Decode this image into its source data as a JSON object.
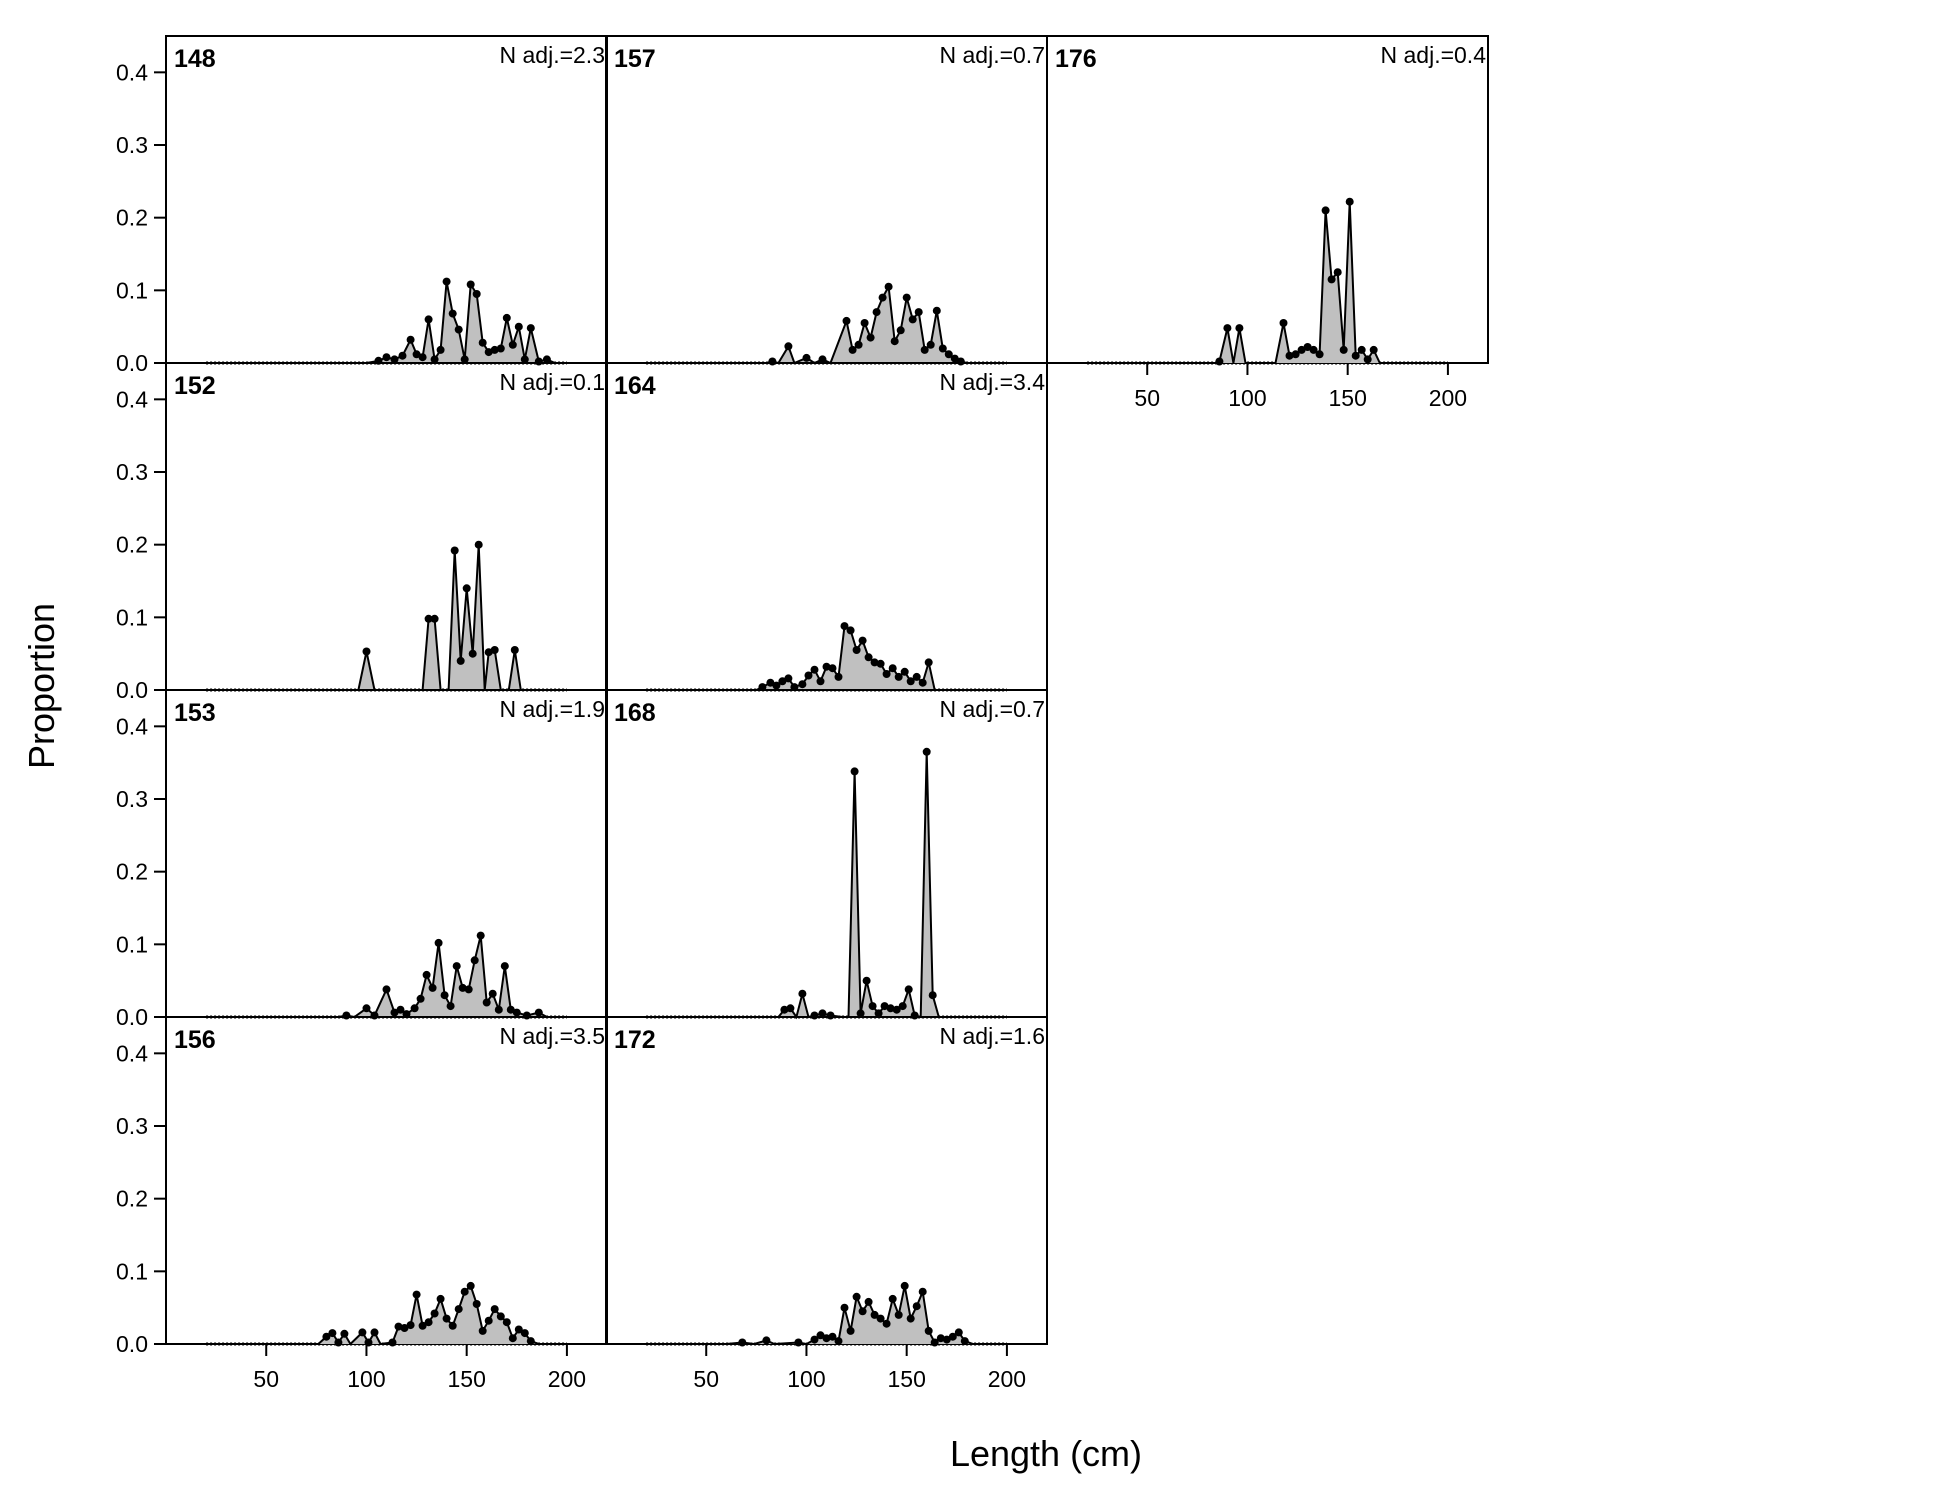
{
  "chart_data": {
    "type": "area",
    "xlabel": "Length (cm)",
    "ylabel": "Proportion",
    "xlim": [
      0,
      220
    ],
    "ylim": [
      0,
      0.45
    ],
    "xticks": [
      50,
      100,
      150,
      200
    ],
    "yticks": [
      0.0,
      0.1,
      0.2,
      0.3,
      0.4
    ],
    "ytick_labels": [
      "0.0",
      "0.1",
      "0.2",
      "0.3",
      "0.4"
    ],
    "fill_color": "#c0c0c0",
    "line_color": "#000000",
    "panels": [
      {
        "id": "148",
        "n_adj": "N adj.=2.3",
        "row": 0,
        "col": 0,
        "points": [
          [
            100,
            0
          ],
          [
            106,
            0.003
          ],
          [
            110,
            0.008
          ],
          [
            114,
            0.005
          ],
          [
            118,
            0.01
          ],
          [
            122,
            0.032
          ],
          [
            125,
            0.012
          ],
          [
            128,
            0.008
          ],
          [
            131,
            0.06
          ],
          [
            134,
            0.005
          ],
          [
            137,
            0.018
          ],
          [
            140,
            0.112
          ],
          [
            143,
            0.068
          ],
          [
            146,
            0.046
          ],
          [
            149,
            0.005
          ],
          [
            152,
            0.108
          ],
          [
            155,
            0.095
          ],
          [
            158,
            0.028
          ],
          [
            161,
            0.015
          ],
          [
            164,
            0.018
          ],
          [
            167,
            0.02
          ],
          [
            170,
            0.062
          ],
          [
            173,
            0.025
          ],
          [
            176,
            0.05
          ],
          [
            179,
            0.005
          ],
          [
            182,
            0.048
          ],
          [
            186,
            0.002
          ],
          [
            190,
            0.005
          ],
          [
            194,
            0
          ]
        ]
      },
      {
        "id": "157",
        "n_adj": "N adj.=0.7",
        "row": 0,
        "col": 1,
        "points": [
          [
            80,
            0
          ],
          [
            83,
            0.002
          ],
          [
            86,
            0
          ],
          [
            91,
            0.023
          ],
          [
            94,
            0
          ],
          [
            100,
            0.007
          ],
          [
            104,
            0
          ],
          [
            108,
            0.005
          ],
          [
            112,
            0
          ],
          [
            120,
            0.058
          ],
          [
            123,
            0.018
          ],
          [
            126,
            0.025
          ],
          [
            129,
            0.055
          ],
          [
            132,
            0.035
          ],
          [
            135,
            0.07
          ],
          [
            138,
            0.09
          ],
          [
            141,
            0.105
          ],
          [
            144,
            0.03
          ],
          [
            147,
            0.045
          ],
          [
            150,
            0.09
          ],
          [
            153,
            0.06
          ],
          [
            156,
            0.07
          ],
          [
            159,
            0.018
          ],
          [
            162,
            0.025
          ],
          [
            165,
            0.072
          ],
          [
            168,
            0.02
          ],
          [
            171,
            0.012
          ],
          [
            174,
            0.006
          ],
          [
            177,
            0.002
          ],
          [
            180,
            0
          ]
        ]
      },
      {
        "id": "176",
        "n_adj": "N adj.=0.4",
        "row": 0,
        "col": 2,
        "points": [
          [
            84,
            0
          ],
          [
            86,
            0.002
          ],
          [
            90,
            0.048
          ],
          [
            93,
            0
          ],
          [
            96,
            0.048
          ],
          [
            99,
            0
          ],
          [
            114,
            0
          ],
          [
            118,
            0.055
          ],
          [
            121,
            0.01
          ],
          [
            124,
            0.012
          ],
          [
            127,
            0.018
          ],
          [
            130,
            0.022
          ],
          [
            133,
            0.018
          ],
          [
            136,
            0.012
          ],
          [
            139,
            0.21
          ],
          [
            142,
            0.115
          ],
          [
            145,
            0.125
          ],
          [
            148,
            0.018
          ],
          [
            151,
            0.222
          ],
          [
            154,
            0.01
          ],
          [
            157,
            0.018
          ],
          [
            160,
            0.005
          ],
          [
            163,
            0.018
          ],
          [
            166,
            0
          ]
        ]
      },
      {
        "id": "152",
        "n_adj": "N adj.=0.1",
        "row": 1,
        "col": 0,
        "points": [
          [
            96,
            0
          ],
          [
            100,
            0.053
          ],
          [
            104,
            0
          ],
          [
            128,
            0
          ],
          [
            131,
            0.098
          ],
          [
            134,
            0.098
          ],
          [
            137,
            0
          ],
          [
            141,
            0
          ],
          [
            144,
            0.192
          ],
          [
            147,
            0.04
          ],
          [
            150,
            0.14
          ],
          [
            153,
            0.05
          ],
          [
            156,
            0.2
          ],
          [
            159,
            0
          ],
          [
            161,
            0.052
          ],
          [
            164,
            0.055
          ],
          [
            167,
            0
          ],
          [
            171,
            0
          ],
          [
            174,
            0.055
          ],
          [
            177,
            0
          ]
        ]
      },
      {
        "id": "164",
        "n_adj": "N adj.=3.4",
        "row": 1,
        "col": 1,
        "points": [
          [
            75,
            0
          ],
          [
            78,
            0.004
          ],
          [
            82,
            0.01
          ],
          [
            85,
            0.006
          ],
          [
            88,
            0.012
          ],
          [
            91,
            0.016
          ],
          [
            94,
            0.004
          ],
          [
            98,
            0.008
          ],
          [
            101,
            0.02
          ],
          [
            104,
            0.028
          ],
          [
            107,
            0.012
          ],
          [
            110,
            0.032
          ],
          [
            113,
            0.03
          ],
          [
            116,
            0.018
          ],
          [
            119,
            0.088
          ],
          [
            122,
            0.082
          ],
          [
            125,
            0.055
          ],
          [
            128,
            0.068
          ],
          [
            131,
            0.045
          ],
          [
            134,
            0.038
          ],
          [
            137,
            0.036
          ],
          [
            140,
            0.022
          ],
          [
            143,
            0.03
          ],
          [
            146,
            0.018
          ],
          [
            149,
            0.025
          ],
          [
            152,
            0.012
          ],
          [
            155,
            0.018
          ],
          [
            158,
            0.01
          ],
          [
            161,
            0.038
          ],
          [
            164,
            0
          ]
        ]
      },
      {
        "id": "153",
        "n_adj": "N adj.=1.9",
        "row": 2,
        "col": 0,
        "points": [
          [
            86,
            0
          ],
          [
            90,
            0.002
          ],
          [
            94,
            0
          ],
          [
            100,
            0.012
          ],
          [
            104,
            0.002
          ],
          [
            110,
            0.038
          ],
          [
            114,
            0.006
          ],
          [
            117,
            0.01
          ],
          [
            120,
            0.004
          ],
          [
            124,
            0.012
          ],
          [
            127,
            0.025
          ],
          [
            130,
            0.058
          ],
          [
            133,
            0.04
          ],
          [
            136,
            0.102
          ],
          [
            139,
            0.03
          ],
          [
            142,
            0.015
          ],
          [
            145,
            0.07
          ],
          [
            148,
            0.04
          ],
          [
            151,
            0.038
          ],
          [
            154,
            0.078
          ],
          [
            157,
            0.112
          ],
          [
            160,
            0.02
          ],
          [
            163,
            0.032
          ],
          [
            166,
            0.01
          ],
          [
            169,
            0.07
          ],
          [
            172,
            0.01
          ],
          [
            175,
            0.006
          ],
          [
            180,
            0.002
          ],
          [
            186,
            0.006
          ],
          [
            190,
            0
          ]
        ]
      },
      {
        "id": "168",
        "n_adj": "N adj.=0.7",
        "row": 2,
        "col": 1,
        "points": [
          [
            86,
            0
          ],
          [
            89,
            0.01
          ],
          [
            92,
            0.012
          ],
          [
            95,
            0
          ],
          [
            98,
            0.032
          ],
          [
            101,
            0
          ],
          [
            104,
            0.002
          ],
          [
            108,
            0.005
          ],
          [
            112,
            0.002
          ],
          [
            118,
            0
          ],
          [
            121,
            0
          ],
          [
            124,
            0.338
          ],
          [
            127,
            0.005
          ],
          [
            130,
            0.05
          ],
          [
            133,
            0.015
          ],
          [
            136,
            0.005
          ],
          [
            139,
            0.015
          ],
          [
            142,
            0.012
          ],
          [
            145,
            0.01
          ],
          [
            148,
            0.015
          ],
          [
            151,
            0.038
          ],
          [
            154,
            0.002
          ],
          [
            157,
            0
          ],
          [
            160,
            0.365
          ],
          [
            163,
            0.03
          ],
          [
            166,
            0
          ]
        ]
      },
      {
        "id": "156",
        "n_adj": "N adj.=3.5",
        "row": 3,
        "col": 0,
        "points": [
          [
            76,
            0
          ],
          [
            80,
            0.01
          ],
          [
            83,
            0.015
          ],
          [
            86,
            0.002
          ],
          [
            89,
            0.014
          ],
          [
            92,
            0
          ],
          [
            98,
            0.016
          ],
          [
            101,
            0.002
          ],
          [
            104,
            0.016
          ],
          [
            107,
            0
          ],
          [
            113,
            0.002
          ],
          [
            116,
            0.024
          ],
          [
            119,
            0.022
          ],
          [
            122,
            0.026
          ],
          [
            125,
            0.068
          ],
          [
            128,
            0.025
          ],
          [
            131,
            0.03
          ],
          [
            134,
            0.042
          ],
          [
            137,
            0.062
          ],
          [
            140,
            0.035
          ],
          [
            143,
            0.025
          ],
          [
            146,
            0.048
          ],
          [
            149,
            0.072
          ],
          [
            152,
            0.08
          ],
          [
            155,
            0.055
          ],
          [
            158,
            0.018
          ],
          [
            161,
            0.032
          ],
          [
            164,
            0.048
          ],
          [
            167,
            0.038
          ],
          [
            170,
            0.03
          ],
          [
            173,
            0.008
          ],
          [
            176,
            0.02
          ],
          [
            179,
            0.015
          ],
          [
            182,
            0.004
          ],
          [
            186,
            0
          ]
        ]
      },
      {
        "id": "172",
        "n_adj": "N adj.=1.6",
        "row": 3,
        "col": 1,
        "points": [
          [
            60,
            0
          ],
          [
            68,
            0.002
          ],
          [
            74,
            0
          ],
          [
            80,
            0.005
          ],
          [
            84,
            0
          ],
          [
            96,
            0.002
          ],
          [
            100,
            0
          ],
          [
            104,
            0.006
          ],
          [
            107,
            0.012
          ],
          [
            110,
            0.008
          ],
          [
            113,
            0.01
          ],
          [
            116,
            0.004
          ],
          [
            119,
            0.05
          ],
          [
            122,
            0.018
          ],
          [
            125,
            0.065
          ],
          [
            128,
            0.045
          ],
          [
            131,
            0.058
          ],
          [
            134,
            0.04
          ],
          [
            137,
            0.035
          ],
          [
            140,
            0.028
          ],
          [
            143,
            0.062
          ],
          [
            146,
            0.04
          ],
          [
            149,
            0.08
          ],
          [
            152,
            0.035
          ],
          [
            155,
            0.052
          ],
          [
            158,
            0.072
          ],
          [
            161,
            0.018
          ],
          [
            164,
            0.002
          ],
          [
            167,
            0.008
          ],
          [
            170,
            0.006
          ],
          [
            173,
            0.01
          ],
          [
            176,
            0.016
          ],
          [
            179,
            0.004
          ],
          [
            183,
            0
          ]
        ]
      }
    ]
  }
}
